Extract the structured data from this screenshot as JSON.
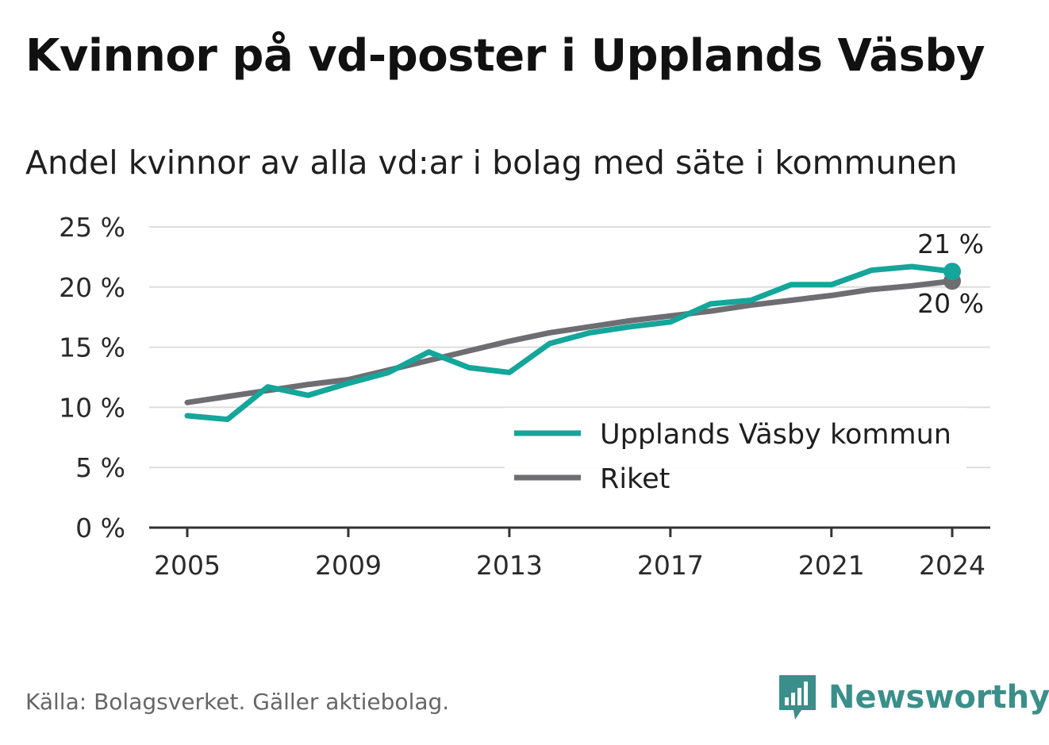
{
  "title": "Kvinnor på vd-poster i Upplands Väsby",
  "subtitle": "Andel kvinnor av alla vd:ar i bolag med säte i kommunen",
  "source": "Källa: Bolagsverket. Gäller aktiebolag.",
  "brand": {
    "name": "Newsworthy",
    "icon": "bar-chart-icon"
  },
  "colors": {
    "kommun": "#14a69a",
    "riket": "#6e6d72",
    "grid": "#dddddd",
    "axis": "#333333"
  },
  "chart_data": {
    "type": "line",
    "ylim": [
      0,
      25
    ],
    "xlim": [
      2005,
      2024
    ],
    "y_ticks": [
      0,
      5,
      10,
      15,
      20,
      25
    ],
    "y_tick_labels": [
      "0 %",
      "5 %",
      "10 %",
      "15 %",
      "20 %",
      "25 %"
    ],
    "x_ticks": [
      2005,
      2009,
      2013,
      2017,
      2021,
      2024
    ],
    "x_tick_labels": [
      "2005",
      "2009",
      "2013",
      "2017",
      "2021",
      "2024"
    ],
    "grid": true,
    "legend_position": "bottom-right",
    "x": [
      2005,
      2006,
      2007,
      2008,
      2009,
      2010,
      2011,
      2012,
      2013,
      2014,
      2015,
      2016,
      2017,
      2018,
      2019,
      2020,
      2021,
      2022,
      2023,
      2024
    ],
    "series": [
      {
        "name": "Upplands Väsby kommun",
        "color": "#14a69a",
        "values": [
          9.3,
          9.0,
          11.7,
          11.0,
          12.0,
          12.9,
          14.6,
          13.3,
          12.9,
          15.3,
          16.2,
          16.7,
          17.1,
          18.6,
          18.9,
          20.2,
          20.2,
          21.4,
          21.7,
          21.3
        ],
        "end_label": "21 %"
      },
      {
        "name": "Riket",
        "color": "#6e6d72",
        "values": [
          10.4,
          10.9,
          11.4,
          11.9,
          12.3,
          13.1,
          13.9,
          14.7,
          15.5,
          16.2,
          16.7,
          17.2,
          17.6,
          18.0,
          18.5,
          18.9,
          19.3,
          19.8,
          20.1,
          20.5
        ],
        "end_label": "20 %"
      }
    ]
  }
}
